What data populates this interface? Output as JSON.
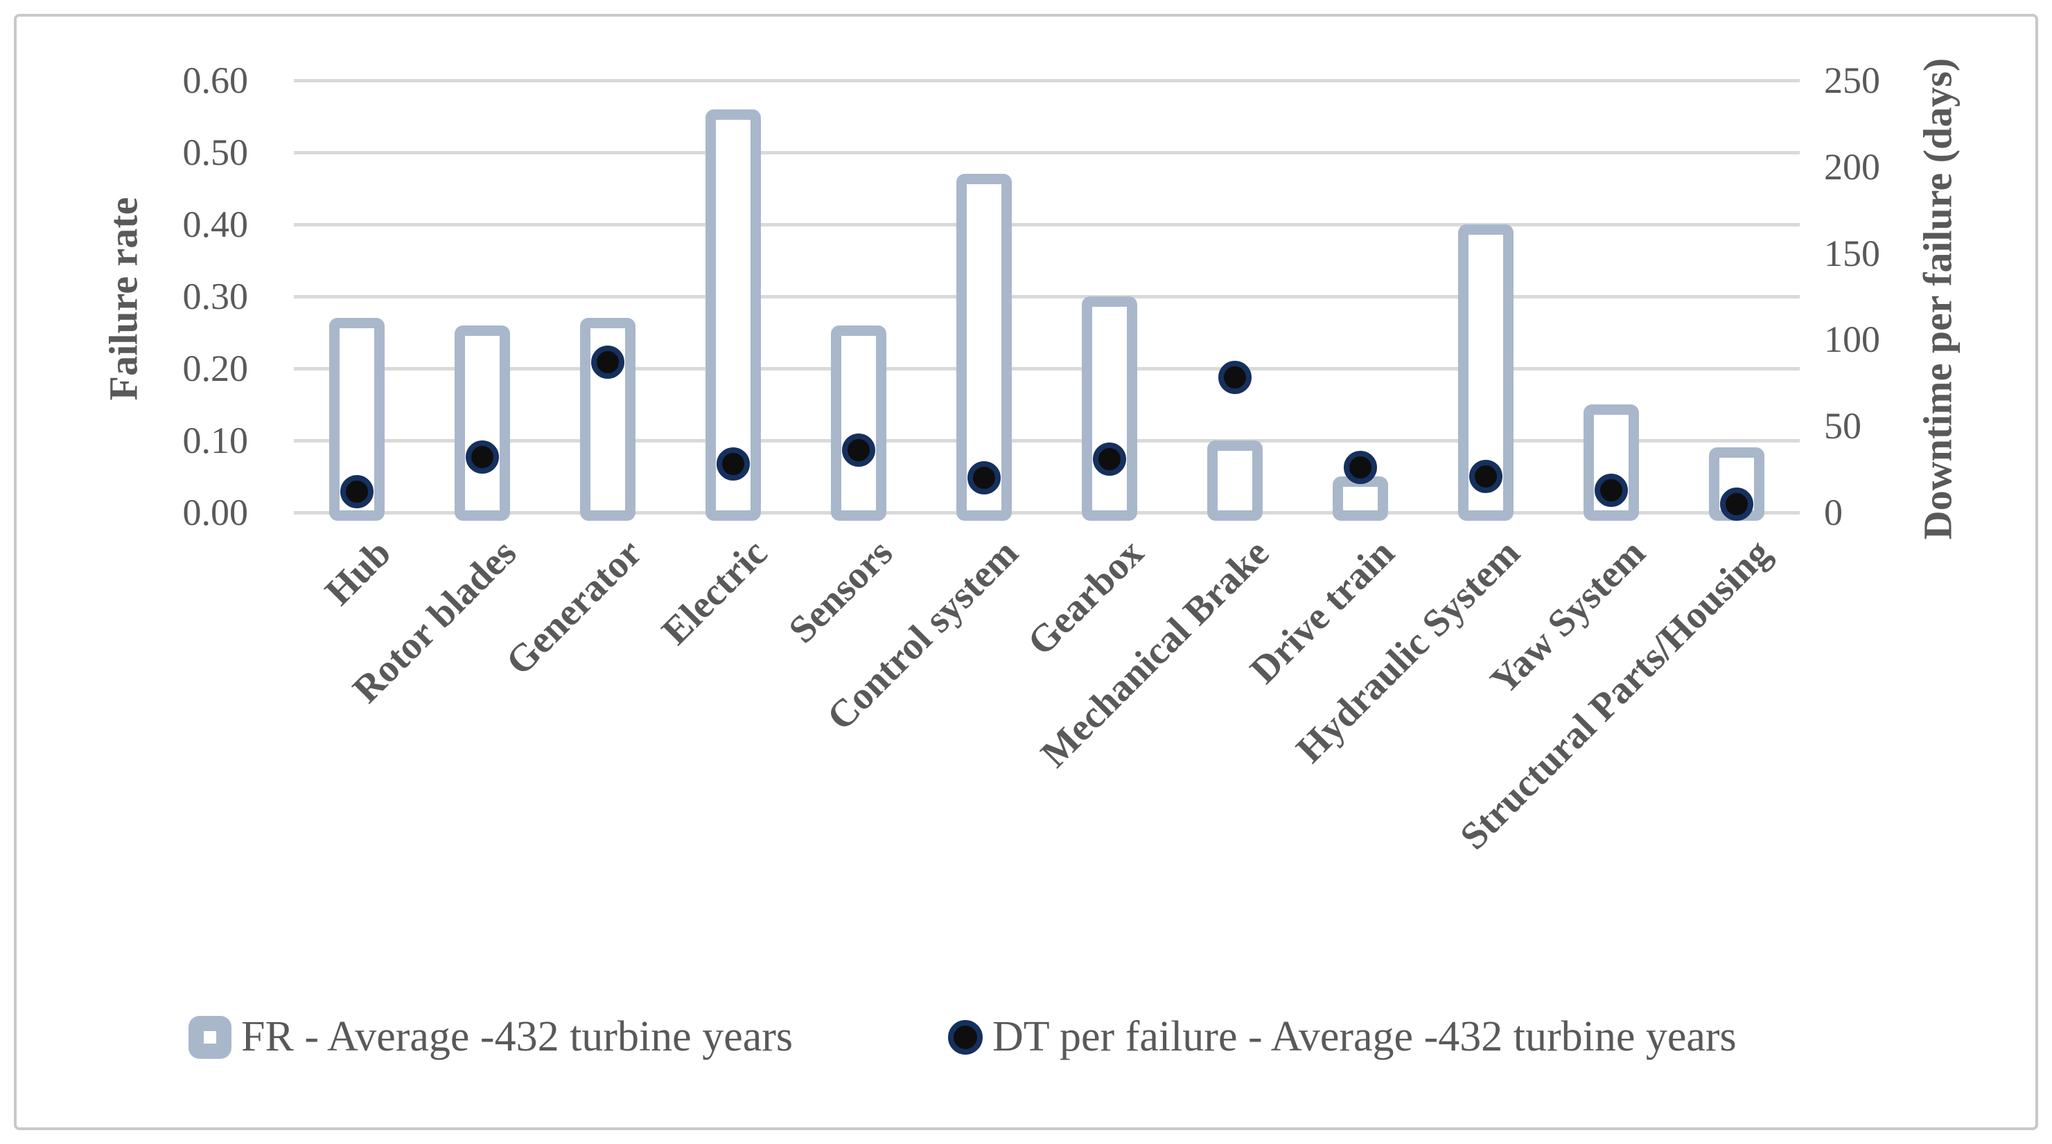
{
  "chart_data": {
    "type": "bar",
    "subtype": "dual-axis bar + scatter dots",
    "categories": [
      "Hub",
      "Rotor blades",
      "Generator",
      "Electric",
      "Sensors",
      "Control system",
      "Gearbox",
      "Mechanical Brake",
      "Drive train",
      "Hydraulic System",
      "Yaw System",
      "Structural Parts/Housing"
    ],
    "series": [
      {
        "name": "FR - Average -432 turbine years",
        "type": "bar",
        "axis": "left",
        "values": [
          0.27,
          0.26,
          0.27,
          0.56,
          0.26,
          0.47,
          0.3,
          0.1,
          0.05,
          0.4,
          0.15,
          0.09
        ]
      },
      {
        "name": "DT per failure - Average -432 turbine years",
        "type": "scatter",
        "axis": "right",
        "values": [
          12,
          32,
          87,
          28,
          36,
          20,
          31,
          78,
          26,
          21,
          13,
          5
        ]
      }
    ],
    "left_axis": {
      "label": "Failure rate",
      "min": 0,
      "max": 0.6,
      "ticks": [
        "0.60",
        "0.50",
        "0.40",
        "0.30",
        "0.20",
        "0.10",
        "0.00"
      ]
    },
    "right_axis": {
      "label": "Downtime per failure (days)",
      "min": 0,
      "max": 250,
      "ticks": [
        "250",
        "200",
        "150",
        "100",
        "50",
        "0"
      ]
    },
    "grid": "horizontal",
    "legend_position": "bottom",
    "colors": {
      "bar_border": "#a9b7cb",
      "bar_fill": "#ffffff",
      "dot_fill": "#0e0e0e",
      "dot_ring": "#16305e",
      "gridline": "#d9d9d9",
      "text": "#595959",
      "frame_border": "#c9c9c9"
    }
  },
  "legend": {
    "items": [
      {
        "label": "FR - Average -432 turbine years",
        "marker": "hollow-bar-square"
      },
      {
        "label": "DT per failure - Average -432 turbine years",
        "marker": "filled-dot"
      }
    ]
  }
}
